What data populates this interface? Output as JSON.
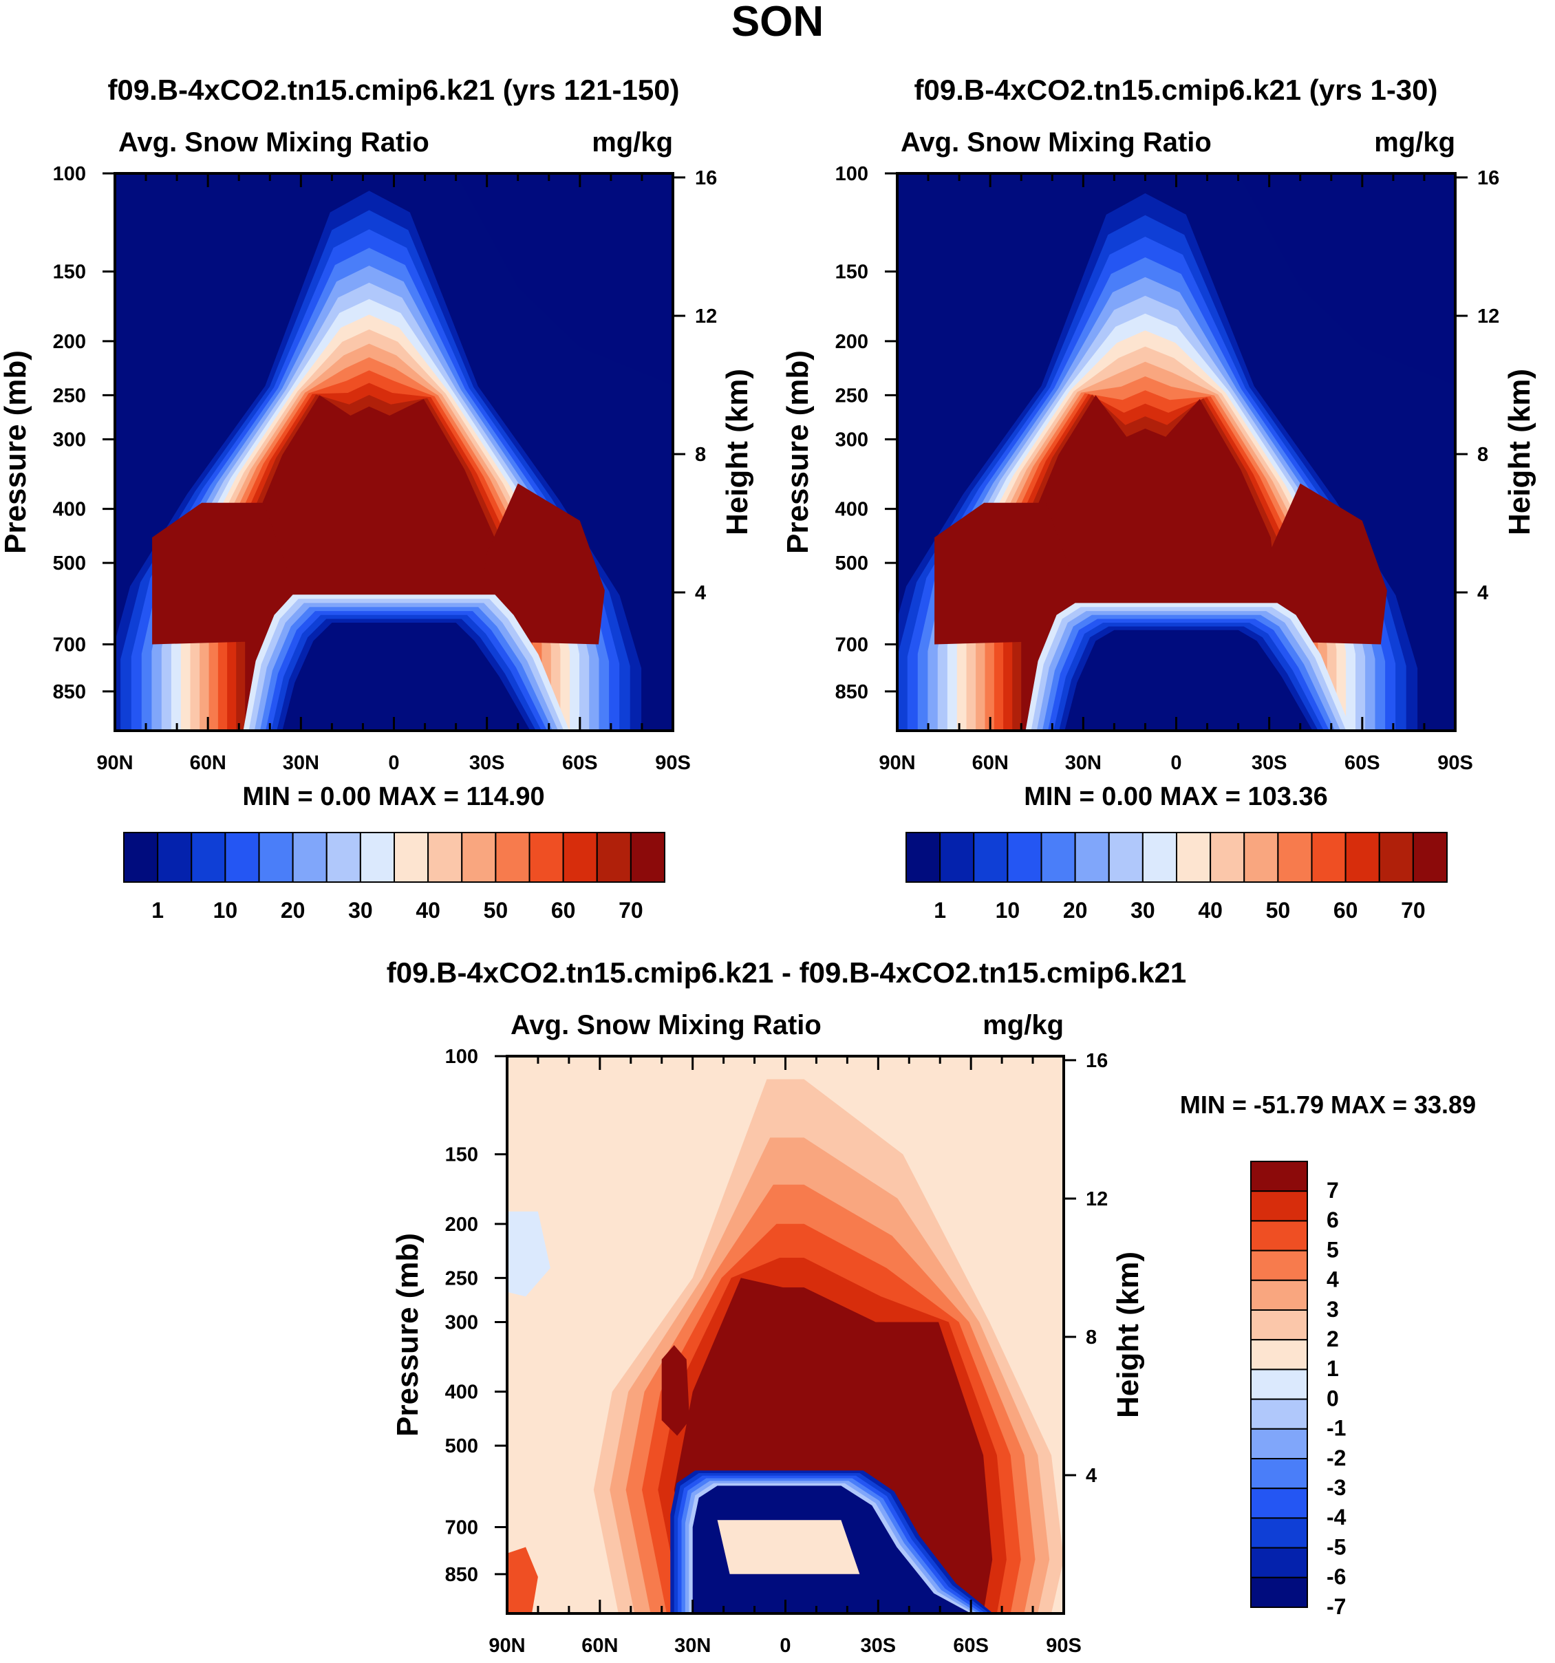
{
  "figure": {
    "title": "SON",
    "left_panel_title": "f09.B-4xCO2.tn15.cmip6.k21 (yrs 121-150)",
    "right_panel_title": "f09.B-4xCO2.tn15.cmip6.k21 (yrs 1-30)",
    "diff_panel_title": "f09.B-4xCO2.tn15.cmip6.k21 - f09.B-4xCO2.tn15.cmip6.k21"
  },
  "colors": {
    "main_scale": [
      "#000c7e",
      "#0422ad",
      "#0f3fd6",
      "#2456f3",
      "#4a7ef9",
      "#80a6fa",
      "#b0c8fb",
      "#dbe9fd",
      "#fde4d0",
      "#fbc7aa",
      "#f9a67f",
      "#f77b4d",
      "#ef4f23",
      "#d72d0c",
      "#b0200a",
      "#8c0a0a"
    ],
    "diff_scale": [
      "#000c7e",
      "#0422ad",
      "#0f3fd6",
      "#2456f3",
      "#4a7ef9",
      "#80a6fa",
      "#b0c8fb",
      "#dbe9fd",
      "#fde4d0",
      "#fbc7aa",
      "#f9a67f",
      "#f77b4d",
      "#ef4f23",
      "#d72d0c",
      "#8c0a0a"
    ]
  },
  "chart_data": [
    {
      "type": "heatmap",
      "id": "left",
      "variable": "Avg. Snow Mixing Ratio",
      "units": "mg/kg",
      "xlabel": "",
      "ylabel": "Pressure (mb)",
      "y2label": "Height (km)",
      "xticks": [
        "90N",
        "60N",
        "30N",
        "0",
        "30S",
        "60S",
        "90S"
      ],
      "x_values": [
        90,
        60,
        30,
        0,
        -30,
        -60,
        -90
      ],
      "yticks": [
        "100",
        "150",
        "200",
        "250",
        "300",
        "400",
        "500",
        "700",
        "850"
      ],
      "y_values": [
        100,
        150,
        200,
        250,
        300,
        400,
        500,
        700,
        850
      ],
      "y2ticks": [
        "16",
        "12",
        "8",
        "4"
      ],
      "y2_values": [
        16,
        12,
        8,
        4
      ],
      "ylim": [
        100,
        1000
      ],
      "stats": "MIN =    0.00   MAX = 114.90",
      "min": 0.0,
      "max": 114.9,
      "colorbar_labels": [
        "1",
        "10",
        "20",
        "30",
        "40",
        "50",
        "60",
        "70"
      ],
      "levels": [
        1,
        5,
        10,
        15,
        20,
        25,
        30,
        35,
        40,
        45,
        50,
        55,
        60,
        65,
        70
      ]
    },
    {
      "type": "heatmap",
      "id": "right",
      "variable": "Avg. Snow Mixing Ratio",
      "units": "mg/kg",
      "xlabel": "",
      "ylabel": "Pressure (mb)",
      "y2label": "Height (km)",
      "xticks": [
        "90N",
        "60N",
        "30N",
        "0",
        "30S",
        "60S",
        "90S"
      ],
      "x_values": [
        90,
        60,
        30,
        0,
        -30,
        -60,
        -90
      ],
      "yticks": [
        "100",
        "150",
        "200",
        "250",
        "300",
        "400",
        "500",
        "700",
        "850"
      ],
      "y_values": [
        100,
        150,
        200,
        250,
        300,
        400,
        500,
        700,
        850
      ],
      "y2ticks": [
        "16",
        "12",
        "8",
        "4"
      ],
      "y2_values": [
        16,
        12,
        8,
        4
      ],
      "ylim": [
        100,
        1000
      ],
      "stats": "MIN =    0.00   MAX = 103.36",
      "min": 0.0,
      "max": 103.36,
      "colorbar_labels": [
        "1",
        "10",
        "20",
        "30",
        "40",
        "50",
        "60",
        "70"
      ],
      "levels": [
        1,
        5,
        10,
        15,
        20,
        25,
        30,
        35,
        40,
        45,
        50,
        55,
        60,
        65,
        70
      ]
    },
    {
      "type": "heatmap",
      "id": "diff",
      "variable": "Avg. Snow Mixing Ratio",
      "units": "mg/kg",
      "xlabel": "",
      "ylabel": "Pressure (mb)",
      "y2label": "Height (km)",
      "xticks": [
        "90N",
        "60N",
        "30N",
        "0",
        "30S",
        "60S",
        "90S"
      ],
      "x_values": [
        90,
        60,
        30,
        0,
        -30,
        -60,
        -90
      ],
      "yticks": [
        "100",
        "150",
        "200",
        "250",
        "300",
        "400",
        "500",
        "700",
        "850"
      ],
      "y_values": [
        100,
        150,
        200,
        250,
        300,
        400,
        500,
        700,
        850
      ],
      "y2ticks": [
        "16",
        "12",
        "8",
        "4"
      ],
      "y2_values": [
        16,
        12,
        8,
        4
      ],
      "ylim": [
        100,
        1000
      ],
      "stats": "MIN = -51.79   MAX =  33.89",
      "min": -51.79,
      "max": 33.89,
      "colorbar_labels": [
        "7",
        "6",
        "5",
        "4",
        "3",
        "2",
        "1",
        "0",
        "-1",
        "-2",
        "-3",
        "-4",
        "-5",
        "-6",
        "-7"
      ],
      "levels": [
        -7,
        -6,
        -5,
        -4,
        -3,
        -2,
        -1,
        0,
        1,
        2,
        3,
        4,
        5,
        6,
        7
      ]
    }
  ]
}
